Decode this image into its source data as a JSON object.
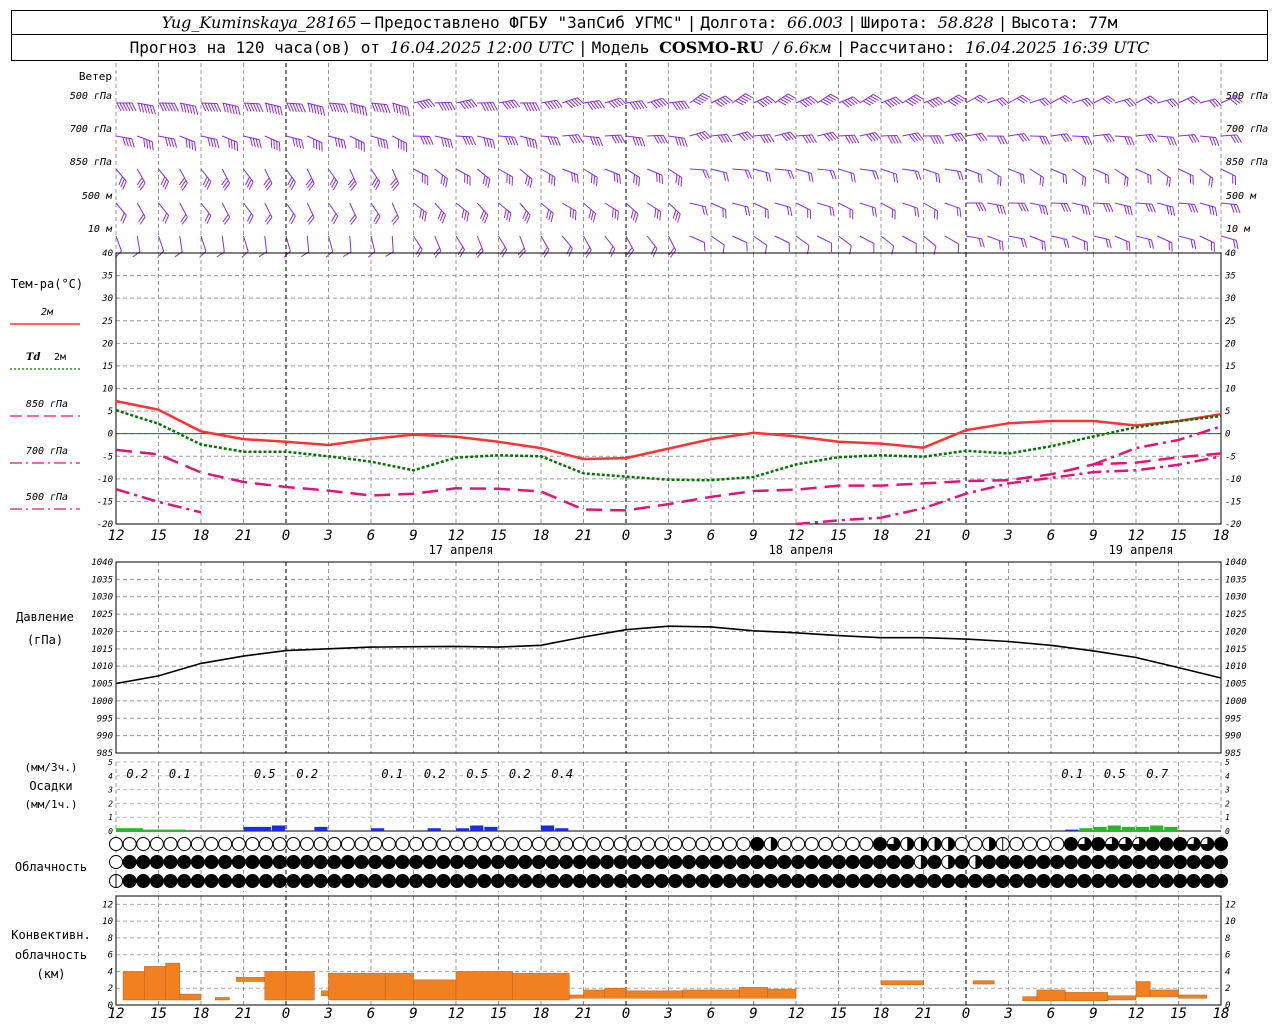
{
  "header": {
    "station": "Yug_Kuminskaya_28165",
    "dash": "–",
    "provided_by": "Предоставлено ФГБУ \"ЗапСиб УГМС\"",
    "lon_label": "Долгота:",
    "lon_value": "66.003",
    "lat_label": "Широта:",
    "lat_value": "58.828",
    "alt_label": "Высота:",
    "alt_value": "77м",
    "forecast_label": "Прогноз на 120 часа(ов) от",
    "forecast_start": "16.04.2025 12:00 UTC",
    "model_label": "Модель",
    "model_name": "COSMO-RU",
    "model_res": "/ 6.6км",
    "calc_label": "Рассчитано:",
    "calc_time": "16.04.2025 16:39 UTC"
  },
  "colors": {
    "wind": "#8a2be2",
    "t2m": "#ff3333",
    "td2m": "#007700",
    "t850": "#e0157a",
    "precip_blue": "#1a2ee0",
    "precip_green": "#22bb22",
    "cloud_conv": "#f08020",
    "pressure": "#000000",
    "zero_line": "#3344cc"
  },
  "chart_data": [
    {
      "type": "wind_barbs",
      "title": "Ветер",
      "levels": [
        "500 гПа",
        "700 гПа",
        "850 гПа",
        "500 м",
        "10 м"
      ]
    },
    {
      "type": "line",
      "title": "Тем-ра(°С)",
      "legend": [
        {
          "name": "2м",
          "style": "solid",
          "color": "#ff3333"
        },
        {
          "name": "Td 2м",
          "style": "dotted",
          "color": "#007700"
        },
        {
          "name": "850 гПа",
          "style": "dashed",
          "color": "#e0157a"
        },
        {
          "name": "700 гПа",
          "style": "dashdot",
          "color": "#e0157a"
        },
        {
          "name": "500 гПа",
          "style": "dashdot",
          "color": "#e0157a"
        }
      ],
      "ylim": [
        -20,
        40
      ],
      "yticks": [
        -20,
        -15,
        -10,
        -5,
        0,
        5,
        10,
        15,
        20,
        25,
        30,
        35,
        40
      ],
      "x_hours": [
        0,
        3,
        6,
        9,
        12,
        15,
        18,
        21,
        24,
        27,
        30,
        33,
        36,
        39,
        42,
        45,
        48,
        51,
        54,
        57,
        60,
        63,
        66,
        69,
        72,
        75,
        78
      ],
      "series": [
        {
          "name": "2м",
          "values": [
            7.2,
            5.3,
            0.5,
            -1.2,
            -1.8,
            -2.5,
            -1.2,
            -0.2,
            -0.7,
            -1.8,
            -3.2,
            -5.6,
            -5.4,
            -3.3,
            -1.2,
            0.2,
            -0.6,
            -1.8,
            -2.2,
            -3.1,
            0.8,
            2.3,
            2.8,
            2.8,
            1.8,
            2.8,
            4.3
          ]
        },
        {
          "name": "Td 2м",
          "values": [
            5.2,
            2.2,
            -2.4,
            -4.0,
            -4.0,
            -5.0,
            -6.2,
            -8.1,
            -5.3,
            -4.8,
            -5.0,
            -8.8,
            -9.5,
            -10.2,
            -10.3,
            -9.6,
            -6.8,
            -5.2,
            -4.8,
            -5.1,
            -3.8,
            -4.4,
            -2.8,
            -0.6,
            1.4,
            2.8,
            3.9
          ]
        },
        {
          "name": "850 гПа",
          "values": [
            -3.6,
            -4.6,
            -8.6,
            -10.7,
            -11.8,
            -12.6,
            -13.7,
            -13.3,
            -12.1,
            -12.2,
            -12.8,
            -16.8,
            -17.0,
            -15.6,
            -14.0,
            -12.7,
            -12.4,
            -11.5,
            -11.5,
            -11.0,
            -10.5,
            -10.3,
            -9.0,
            -6.8,
            -6.4,
            -5.2,
            -4.4
          ]
        },
        {
          "name": "700 гПа",
          "values": [
            null,
            null,
            null,
            null,
            null,
            null,
            null,
            null,
            null,
            null,
            null,
            null,
            null,
            null,
            null,
            null,
            null,
            null,
            null,
            null,
            null,
            null,
            null,
            -6.8,
            -3.2,
            -1.4,
            1.6
          ]
        },
        {
          "name": "500 гПа",
          "values": [
            -12.3,
            -15.1,
            -17.4,
            -20.5,
            null,
            null,
            null,
            null,
            null,
            null,
            null,
            null,
            null,
            null,
            null,
            null,
            -20.0,
            -19.2,
            -18.6,
            -16.5,
            -13.3,
            -11.0,
            -9.8,
            -8.5,
            -8.1,
            -6.9,
            -5.0
          ]
        }
      ]
    },
    {
      "type": "line",
      "title": "Давление",
      "ylabel": "(гПа)",
      "ylim": [
        985,
        1040
      ],
      "yticks": [
        985,
        990,
        995,
        1000,
        1005,
        1010,
        1015,
        1020,
        1025,
        1030,
        1035,
        1040
      ],
      "x_hours": [
        0,
        3,
        6,
        9,
        12,
        15,
        18,
        21,
        24,
        27,
        30,
        33,
        36,
        39,
        42,
        45,
        48,
        51,
        54,
        57,
        60,
        63,
        66,
        69,
        72,
        75,
        78
      ],
      "series": [
        {
          "name": "",
          "values": [
            1005.0,
            1007.2,
            1010.8,
            1012.9,
            1014.5,
            1015.0,
            1015.5,
            1015.6,
            1015.7,
            1015.5,
            1016.0,
            1018.4,
            1020.5,
            1021.5,
            1021.3,
            1020.2,
            1019.6,
            1018.8,
            1018.2,
            1018.2,
            1017.8,
            1017.1,
            1016.0,
            1014.4,
            1012.5,
            1009.6,
            1006.6
          ]
        }
      ]
    },
    {
      "type": "bar",
      "title": "Осадки",
      "ylabel_top": "(мм/3ч.)",
      "ylabel_bottom": "(мм/1ч.)",
      "ylim": [
        0,
        5
      ],
      "yticks": [
        0,
        1,
        2,
        3,
        4,
        5
      ],
      "labels": [
        {
          "hour": 1.5,
          "text": "0.2"
        },
        {
          "hour": 4.5,
          "text": "0.1"
        },
        {
          "hour": 10.5,
          "text": "0.5"
        },
        {
          "hour": 13.5,
          "text": "0.2"
        },
        {
          "hour": 19.5,
          "text": "0.1"
        },
        {
          "hour": 22.5,
          "text": "0.2"
        },
        {
          "hour": 25.5,
          "text": "0.5"
        },
        {
          "hour": 28.5,
          "text": "0.2"
        },
        {
          "hour": 31.5,
          "text": "0.4"
        },
        {
          "hour": 67.5,
          "text": "0.1"
        },
        {
          "hour": 70.5,
          "text": "0.5"
        },
        {
          "hour": 73.5,
          "text": "0.7"
        }
      ],
      "bars": [
        {
          "start": 0,
          "end": 2,
          "value": 0.2,
          "color": "green"
        },
        {
          "start": 2,
          "end": 5,
          "value": 0.1,
          "color": "green"
        },
        {
          "start": 9,
          "end": 11,
          "value": 0.3,
          "color": "blue"
        },
        {
          "start": 11,
          "end": 12,
          "value": 0.4,
          "color": "blue"
        },
        {
          "start": 14,
          "end": 15,
          "value": 0.3,
          "color": "blue"
        },
        {
          "start": 18,
          "end": 19,
          "value": 0.2,
          "color": "blue"
        },
        {
          "start": 22,
          "end": 23,
          "value": 0.2,
          "color": "blue"
        },
        {
          "start": 24,
          "end": 25,
          "value": 0.2,
          "color": "blue"
        },
        {
          "start": 25,
          "end": 26,
          "value": 0.4,
          "color": "blue"
        },
        {
          "start": 26,
          "end": 27,
          "value": 0.3,
          "color": "blue"
        },
        {
          "start": 30,
          "end": 31,
          "value": 0.4,
          "color": "blue"
        },
        {
          "start": 31,
          "end": 32,
          "value": 0.2,
          "color": "blue"
        },
        {
          "start": 67,
          "end": 68,
          "value": 0.1,
          "color": "blue"
        },
        {
          "start": 68,
          "end": 69,
          "value": 0.2,
          "color": "green"
        },
        {
          "start": 69,
          "end": 70,
          "value": 0.3,
          "color": "green"
        },
        {
          "start": 70,
          "end": 71,
          "value": 0.4,
          "color": "green"
        },
        {
          "start": 71,
          "end": 72,
          "value": 0.3,
          "color": "green"
        },
        {
          "start": 72,
          "end": 73,
          "value": 0.3,
          "color": "green"
        },
        {
          "start": 73,
          "end": 74,
          "value": 0.4,
          "color": "green"
        },
        {
          "start": 74,
          "end": 75,
          "value": 0.3,
          "color": "green"
        }
      ]
    },
    {
      "type": "cloud_symbols",
      "title": "Облачность",
      "rows": [
        "0000000000000000000000000000000000000000000000042000000043222200210000434333444334",
        "0444444444444444444444444444444444444444444444444444444444424242444444444444444444",
        "1444444444444444444444444444444444444444444444444444444444444444444444444444444444"
      ]
    },
    {
      "type": "bar",
      "title": "Конвективн. облачность",
      "ylabel": "(км)",
      "ylim": [
        0,
        13
      ],
      "yticks": [
        0,
        2,
        4,
        6,
        8,
        10,
        12
      ],
      "bars": [
        {
          "start": 0.5,
          "end": 2,
          "bottom": 0.6,
          "top": 4.0
        },
        {
          "start": 2,
          "end": 3.5,
          "bottom": 0.6,
          "top": 4.6
        },
        {
          "start": 3.5,
          "end": 4.5,
          "bottom": 0.6,
          "top": 5.0
        },
        {
          "start": 4.5,
          "end": 6,
          "bottom": 0.6,
          "top": 1.3
        },
        {
          "start": 7,
          "end": 8,
          "bottom": 0.6,
          "top": 0.9
        },
        {
          "start": 8.5,
          "end": 10.5,
          "bottom": 2.8,
          "top": 3.3
        },
        {
          "start": 10.5,
          "end": 12,
          "bottom": 0.6,
          "top": 4.0
        },
        {
          "start": 12,
          "end": 14,
          "bottom": 0.6,
          "top": 4.0
        },
        {
          "start": 14.5,
          "end": 15,
          "bottom": 1.1,
          "top": 1.7
        },
        {
          "start": 15,
          "end": 19,
          "bottom": 0.6,
          "top": 3.8
        },
        {
          "start": 19,
          "end": 21,
          "bottom": 0.6,
          "top": 3.8
        },
        {
          "start": 21,
          "end": 24,
          "bottom": 0.6,
          "top": 3.0
        },
        {
          "start": 24,
          "end": 28,
          "bottom": 0.6,
          "top": 4.0
        },
        {
          "start": 28,
          "end": 32,
          "bottom": 0.6,
          "top": 3.8
        },
        {
          "start": 32,
          "end": 33,
          "bottom": 0.8,
          "top": 1.2
        },
        {
          "start": 33,
          "end": 34.5,
          "bottom": 0.8,
          "top": 1.8
        },
        {
          "start": 34.5,
          "end": 36,
          "bottom": 0.8,
          "top": 2.0
        },
        {
          "start": 36,
          "end": 40,
          "bottom": 0.8,
          "top": 1.7
        },
        {
          "start": 40,
          "end": 44,
          "bottom": 0.8,
          "top": 1.8
        },
        {
          "start": 44,
          "end": 46,
          "bottom": 0.8,
          "top": 2.1
        },
        {
          "start": 46,
          "end": 48,
          "bottom": 0.8,
          "top": 1.9
        },
        {
          "start": 54,
          "end": 57,
          "bottom": 2.4,
          "top": 2.9
        },
        {
          "start": 60.5,
          "end": 62,
          "bottom": 2.5,
          "top": 2.9
        },
        {
          "start": 64,
          "end": 65,
          "bottom": 0.5,
          "top": 1.0
        },
        {
          "start": 65,
          "end": 67,
          "bottom": 0.5,
          "top": 1.8
        },
        {
          "start": 67,
          "end": 70,
          "bottom": 0.5,
          "top": 1.5
        },
        {
          "start": 70,
          "end": 72,
          "bottom": 0.6,
          "top": 1.1
        },
        {
          "start": 72,
          "end": 73,
          "bottom": 1.0,
          "top": 2.8
        },
        {
          "start": 73,
          "end": 75,
          "bottom": 1.0,
          "top": 1.8
        },
        {
          "start": 75,
          "end": 77,
          "bottom": 0.8,
          "top": 1.2
        }
      ]
    }
  ],
  "x_axis": {
    "hour_labels": [
      "12",
      "15",
      "18",
      "21",
      "0",
      "3",
      "6",
      "9",
      "12",
      "15",
      "18",
      "21",
      "0",
      "3",
      "6",
      "9",
      "12",
      "15",
      "18",
      "21",
      "0",
      "3",
      "6",
      "9",
      "12",
      "15",
      "18"
    ],
    "day_labels": [
      {
        "hour": 24,
        "text": "17 апреля"
      },
      {
        "hour": 48,
        "text": "18 апреля"
      },
      {
        "hour": 72,
        "text": "19 апреля"
      }
    ],
    "midnights": [
      12,
      36,
      60
    ]
  }
}
